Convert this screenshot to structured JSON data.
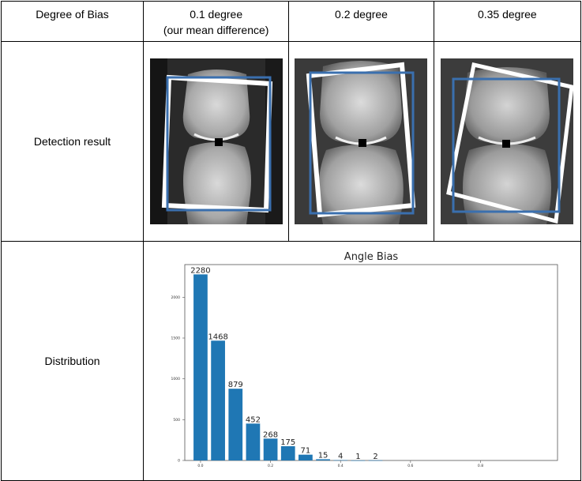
{
  "table": {
    "header": {
      "col0": "Degree of Bias",
      "col1_line1": "0.1 degree",
      "col1_line2": "(our mean difference)",
      "col2": "0.2 degree",
      "col3": "0.35 degree"
    },
    "rows": {
      "detection_label": "Detection result",
      "distribution_label": "Distribution"
    }
  },
  "images": [
    {
      "degree": "0.1 degree",
      "description": "x-ray of finger joint with detection boxes"
    },
    {
      "degree": "0.2 degree",
      "description": "x-ray of finger joint with detection boxes"
    },
    {
      "degree": "0.35 degree",
      "description": "x-ray of finger joint with detection boxes"
    }
  ],
  "colors": {
    "bar": "#1f77b4",
    "pred_box": "#3a6fae",
    "gt_box": "#ffffff"
  },
  "chart_data": {
    "type": "bar",
    "title": "Angle Bias",
    "xlabel": "",
    "ylabel": "",
    "x": [
      0.0,
      0.05,
      0.1,
      0.15,
      0.2,
      0.25,
      0.3,
      0.35,
      0.4,
      0.45,
      0.5
    ],
    "values": [
      2280,
      1468,
      879,
      452,
      268,
      175,
      71,
      15,
      4,
      1,
      2
    ],
    "data_labels": [
      "2280",
      "1468",
      "879",
      "452",
      "268",
      "175",
      "71",
      "15",
      "4",
      "1",
      "2"
    ],
    "yticks": [
      "0",
      "500",
      "1000",
      "1500",
      "2000"
    ],
    "ytick_values": [
      0,
      500,
      1000,
      1500,
      2000
    ],
    "xticks": [
      "0.0",
      "0.2",
      "0.4",
      "0.6",
      "0.8"
    ],
    "xtick_values": [
      0.0,
      0.2,
      0.4,
      0.6,
      0.8
    ],
    "xlim": [
      -0.045,
      1.02
    ],
    "ylim": [
      0,
      2400
    ],
    "grid": false
  }
}
